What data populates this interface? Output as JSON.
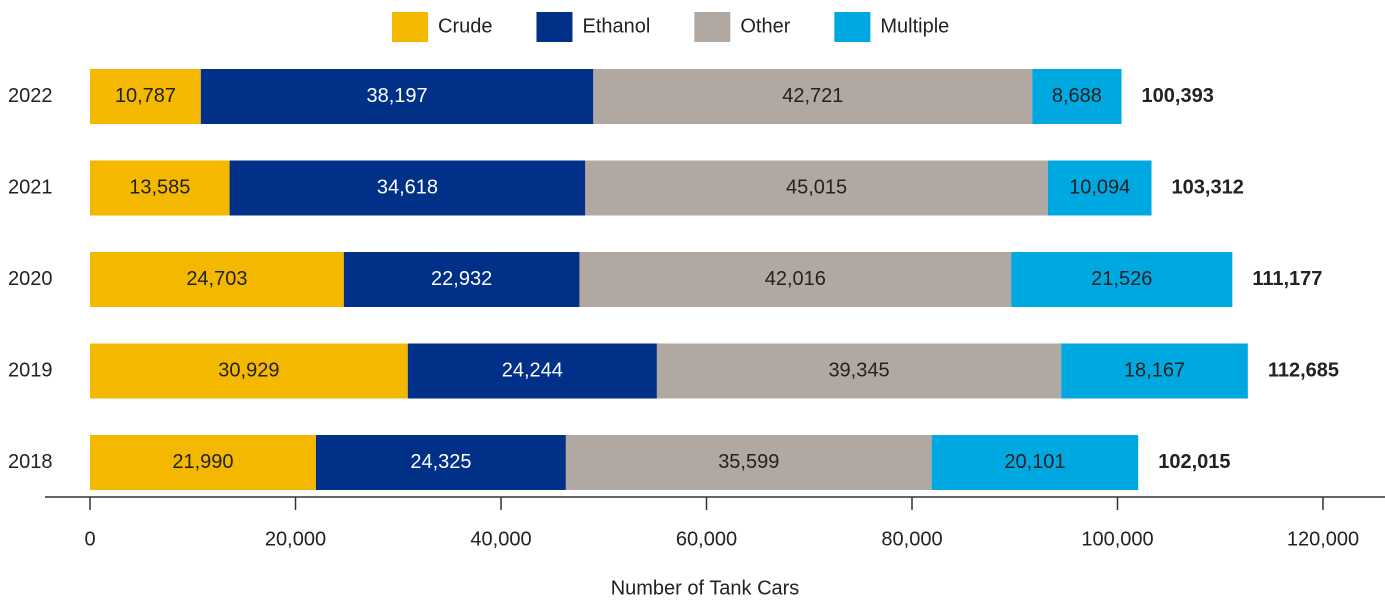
{
  "chart_data": {
    "type": "stacked-bar-horizontal",
    "x_label": "Number of Tank Cars",
    "categories": [
      "2022",
      "2021",
      "2020",
      "2019",
      "2018"
    ],
    "series": [
      {
        "name": "Crude",
        "color": "#f5b800",
        "values": [
          10787,
          13585,
          24703,
          30929,
          21990
        ],
        "value_labels": [
          "10,787",
          "13,585",
          "24,703",
          "30,929",
          "21,990"
        ]
      },
      {
        "name": "Ethanol",
        "color": "#003087",
        "values": [
          38197,
          34618,
          22932,
          24244,
          24325
        ],
        "value_labels": [
          "38,197",
          "34,618",
          "22,932",
          "24,244",
          "24,325"
        ]
      },
      {
        "name": "Other",
        "color": "#b0a8a1",
        "values": [
          42721,
          45015,
          42016,
          39345,
          35599
        ],
        "value_labels": [
          "42,721",
          "45,015",
          "42,016",
          "39,345",
          "35,599"
        ]
      },
      {
        "name": "Multiple",
        "color": "#00a8e1",
        "values": [
          8688,
          10094,
          21526,
          18167,
          20101
        ],
        "value_labels": [
          "8,688",
          "10,094",
          "21,526",
          "18,167",
          "20,101"
        ]
      }
    ],
    "totals": [
      100393,
      103312,
      111177,
      112685,
      102015
    ],
    "total_labels": [
      "100,393",
      "103,312",
      "111,177",
      "112,685",
      "102,015"
    ],
    "xlim": [
      0,
      120000
    ],
    "xticks": [
      0,
      {
        "value": 20000,
        "label": "20,000"
      },
      {
        "value": 40000,
        "label": "40,000"
      },
      {
        "value": 60000,
        "label": "60,000"
      },
      {
        "value": 80000,
        "label": "80,000"
      },
      {
        "value": 100000,
        "label": "100,000"
      },
      {
        "value": 120000,
        "label": "120,000"
      }
    ],
    "legend": "top"
  }
}
